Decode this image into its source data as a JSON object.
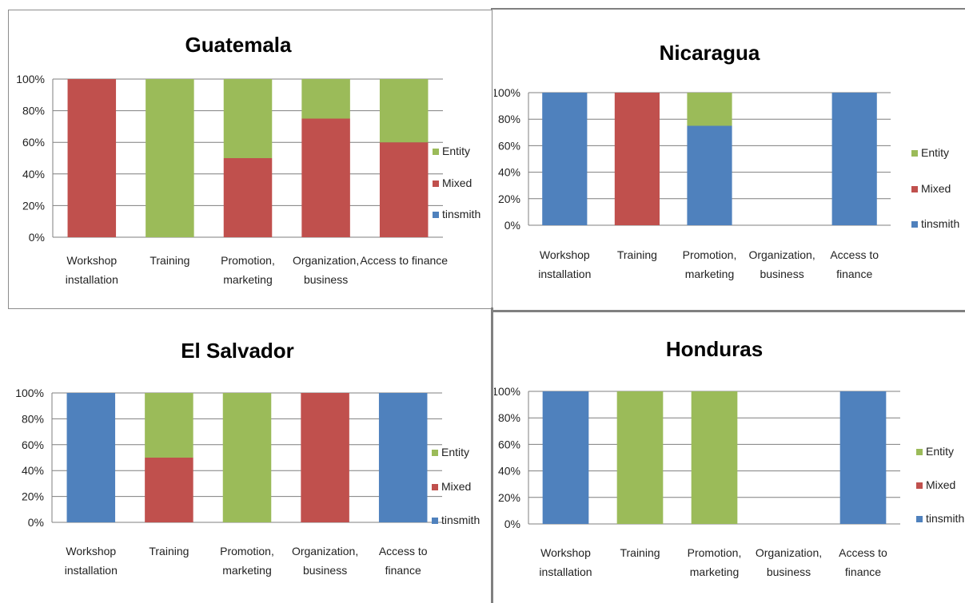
{
  "colors": {
    "entity": "#9BBB59",
    "mixed": "#C0504D",
    "tinsmith": "#4F81BD",
    "grid": "#7f7f7f",
    "text": "#000000"
  },
  "chart_data": [
    {
      "type": "bar",
      "stacked": true,
      "title": "Guatemala",
      "categories": [
        [
          "Workshop",
          "installation"
        ],
        [
          "Training"
        ],
        [
          "Promotion,",
          "marketing"
        ],
        [
          "Organization,",
          "business"
        ],
        [
          "Access to finance"
        ]
      ],
      "series": [
        {
          "name": "tinsmith",
          "values": [
            0,
            0,
            0,
            0,
            0
          ]
        },
        {
          "name": "Mixed",
          "values": [
            100,
            0,
            50,
            75,
            60
          ]
        },
        {
          "name": "Entity",
          "values": [
            0,
            100,
            50,
            25,
            40
          ]
        }
      ],
      "yticks": [
        "0%",
        "20%",
        "40%",
        "60%",
        "80%",
        "100%"
      ],
      "ylim": [
        0,
        100
      ],
      "grid": true,
      "legend": "right"
    },
    {
      "type": "bar",
      "stacked": true,
      "title": "Nicaragua",
      "categories": [
        [
          "Workshop",
          "installation"
        ],
        [
          "Training"
        ],
        [
          "Promotion,",
          "marketing"
        ],
        [
          "Organization,",
          "business"
        ],
        [
          "Access to",
          "finance"
        ]
      ],
      "series": [
        {
          "name": "tinsmith",
          "values": [
            100,
            0,
            75,
            0,
            100
          ]
        },
        {
          "name": "Mixed",
          "values": [
            0,
            100,
            0,
            0,
            0
          ]
        },
        {
          "name": "Entity",
          "values": [
            0,
            0,
            25,
            0,
            0
          ]
        }
      ],
      "yticks": [
        "0%",
        "20%",
        "40%",
        "60%",
        "80%",
        "100%"
      ],
      "ylim": [
        0,
        100
      ],
      "grid": true,
      "legend": "right"
    },
    {
      "type": "bar",
      "stacked": true,
      "title": "El Salvador",
      "categories": [
        [
          "Workshop",
          "installation"
        ],
        [
          "Training"
        ],
        [
          "Promotion,",
          "marketing"
        ],
        [
          "Organization,",
          "business"
        ],
        [
          "Access to",
          "finance"
        ]
      ],
      "series": [
        {
          "name": "tinsmith",
          "values": [
            100,
            0,
            0,
            0,
            100
          ]
        },
        {
          "name": "Mixed",
          "values": [
            0,
            50,
            0,
            100,
            0
          ]
        },
        {
          "name": "Entity",
          "values": [
            0,
            50,
            100,
            0,
            0
          ]
        }
      ],
      "yticks": [
        "0%",
        "20%",
        "40%",
        "60%",
        "80%",
        "100%"
      ],
      "ylim": [
        0,
        100
      ],
      "grid": true,
      "legend": "right"
    },
    {
      "type": "bar",
      "stacked": true,
      "title": "Honduras",
      "categories": [
        [
          "Workshop",
          "installation"
        ],
        [
          "Training"
        ],
        [
          "Promotion,",
          "marketing"
        ],
        [
          "Organization,",
          "business"
        ],
        [
          "Access to",
          "finance"
        ]
      ],
      "series": [
        {
          "name": "tinsmith",
          "values": [
            100,
            0,
            0,
            0,
            100
          ]
        },
        {
          "name": "Mixed",
          "values": [
            0,
            0,
            0,
            0,
            0
          ]
        },
        {
          "name": "Entity",
          "values": [
            0,
            100,
            100,
            0,
            0
          ]
        }
      ],
      "yticks": [
        "0%",
        "20%",
        "40%",
        "60%",
        "80%",
        "100%"
      ],
      "ylim": [
        0,
        100
      ],
      "grid": true,
      "legend": "right"
    }
  ]
}
